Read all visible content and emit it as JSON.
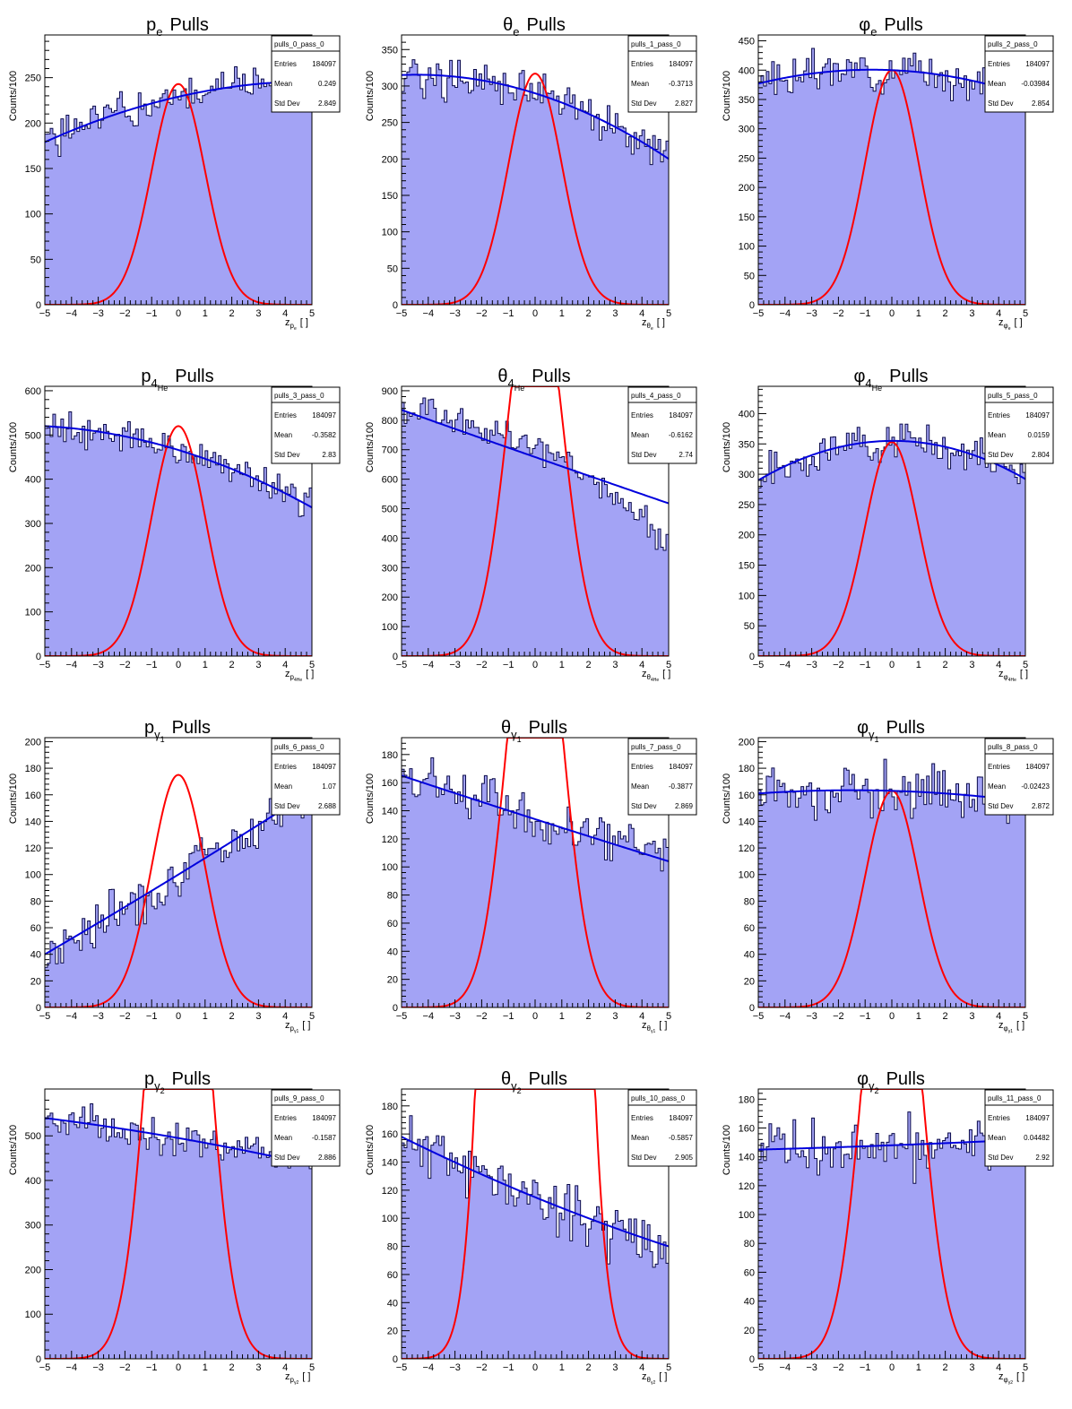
{
  "chart_data": [
    {
      "type": "bar",
      "title": {
        "sym": "p",
        "sub": "e",
        "sub2": "",
        "rest": "Pulls"
      },
      "xlabel": {
        "main": "z",
        "sub": "p",
        "subsub": "e"
      },
      "ylabel": "Counts/100",
      "xlim": [
        -5,
        5
      ],
      "ylim": [
        0,
        297
      ],
      "yticks": [
        0,
        50,
        100,
        150,
        200,
        250
      ],
      "xticks": [
        -5,
        -4,
        -3,
        -2,
        -1,
        0,
        1,
        2,
        3,
        4,
        5
      ],
      "stats": {
        "name": "pulls_0_pass_0",
        "entries": "184097",
        "mean": "0.249",
        "std": "2.849"
      },
      "hist": {
        "bins": 100,
        "trend": [
          179,
          246
        ],
        "curv": -0.9,
        "noise": 12,
        "seed": 1
      },
      "fit": {
        "color": "#0000dd",
        "y_at_xmin": 179,
        "y_at_0": 229,
        "y_at_xmax": 246
      },
      "gaussian": {
        "color": "#ff0000",
        "mean": 0,
        "sigma": 1,
        "amplitude": 243
      },
      "fill_color": "#a3a3f5"
    },
    {
      "type": "bar",
      "title": {
        "sym": "θ",
        "sub": "e",
        "sub2": "",
        "rest": "Pulls"
      },
      "xlabel": {
        "main": "z",
        "sub": "θ",
        "subsub": "e"
      },
      "ylabel": "Counts/100",
      "xlim": [
        -5,
        5
      ],
      "ylim": [
        0,
        370
      ],
      "yticks": [
        0,
        50,
        100,
        150,
        200,
        250,
        300,
        350
      ],
      "xticks": [
        -5,
        -4,
        -3,
        -2,
        -1,
        0,
        1,
        2,
        3,
        4,
        5
      ],
      "stats": {
        "name": "pulls_1_pass_0",
        "entries": "184097",
        "mean": "-0.3713",
        "std": "2.827"
      },
      "hist": {
        "bins": 100,
        "noise": 14,
        "seed": 2
      },
      "fit": {
        "color": "#0000dd",
        "y_at_xmin": 315,
        "y_at_0": 290,
        "y_at_xmax": 200
      },
      "gaussian": {
        "color": "#ff0000",
        "mean": 0,
        "sigma": 1,
        "amplitude": 317
      },
      "fill_color": "#a3a3f5"
    },
    {
      "type": "bar",
      "title": {
        "sym": "φ",
        "sub": "e",
        "sub2": "",
        "rest": "Pulls"
      },
      "xlabel": {
        "main": "z",
        "sub": "φ",
        "subsub": "e"
      },
      "ylabel": "Counts/100",
      "xlim": [
        -5,
        5
      ],
      "ylim": [
        0,
        460
      ],
      "yticks": [
        0,
        50,
        100,
        150,
        200,
        250,
        300,
        350,
        400,
        450
      ],
      "xticks": [
        -5,
        -4,
        -3,
        -2,
        -1,
        0,
        1,
        2,
        3,
        4,
        5
      ],
      "stats": {
        "name": "pulls_2_pass_0",
        "entries": "184097",
        "mean": "-0.03984",
        "std": "2.854"
      },
      "hist": {
        "bins": 100,
        "noise": 16,
        "seed": 3
      },
      "fit": {
        "color": "#0000dd",
        "y_at_xmin": 377,
        "y_at_0": 400,
        "y_at_xmax": 357
      },
      "gaussian": {
        "color": "#ff0000",
        "mean": 0,
        "sigma": 1,
        "amplitude": 400
      },
      "fill_color": "#a3a3f5"
    },
    {
      "type": "bar",
      "title": {
        "sym": "p",
        "sub": "4",
        "sub2": "He",
        "rest": "Pulls"
      },
      "xlabel": {
        "main": "z",
        "sub": "p",
        "subsub": "4He"
      },
      "ylabel": "Counts/100",
      "xlim": [
        -5,
        5
      ],
      "ylim": [
        0,
        610
      ],
      "yticks": [
        0,
        100,
        200,
        300,
        400,
        500,
        600
      ],
      "xticks": [
        -5,
        -4,
        -3,
        -2,
        -1,
        0,
        1,
        2,
        3,
        4,
        5
      ],
      "stats": {
        "name": "pulls_3_pass_0",
        "entries": "184097",
        "mean": "-0.3582",
        "std": "2.83"
      },
      "hist": {
        "bins": 100,
        "noise": 20,
        "seed": 4
      },
      "fit": {
        "color": "#0000dd",
        "y_at_xmin": 520,
        "y_at_0": 466,
        "y_at_xmax": 336
      },
      "gaussian": {
        "color": "#ff0000",
        "mean": 0,
        "sigma": 1,
        "amplitude": 520
      },
      "fill_color": "#a3a3f5"
    },
    {
      "type": "bar",
      "title": {
        "sym": "θ",
        "sub": "4",
        "sub2": "He",
        "rest": "Pulls"
      },
      "xlabel": {
        "main": "z",
        "sub": "θ",
        "subsub": "4He"
      },
      "ylabel": "Counts/100",
      "xlim": [
        -5,
        5
      ],
      "ylim": [
        0,
        915
      ],
      "yticks": [
        0,
        100,
        200,
        300,
        400,
        500,
        600,
        700,
        800,
        900
      ],
      "xticks": [
        -5,
        -4,
        -3,
        -2,
        -1,
        0,
        1,
        2,
        3,
        4,
        5
      ],
      "stats": {
        "name": "pulls_4_pass_0",
        "entries": "184097",
        "mean": "-0.6162",
        "std": "2.74"
      },
      "hist": {
        "bins": 100,
        "noise": 28,
        "seed": 5,
        "shape": [
          [
            -5,
            820
          ],
          [
            -4,
            820
          ],
          [
            -3,
            800
          ],
          [
            -2,
            780
          ],
          [
            -1,
            750
          ],
          [
            0,
            700
          ],
          [
            1,
            660
          ],
          [
            2,
            590
          ],
          [
            3,
            540
          ],
          [
            4,
            460
          ],
          [
            5,
            370
          ]
        ]
      },
      "fit": {
        "color": "#0000dd",
        "y_at_xmin": 835,
        "y_at_0": 675,
        "y_at_xmax": 518
      },
      "gaussian": {
        "color": "#ff0000",
        "mean": 0,
        "sigma": 1,
        "amplitude": 1350
      },
      "fill_color": "#a3a3f5"
    },
    {
      "type": "bar",
      "title": {
        "sym": "φ",
        "sub": "4",
        "sub2": "He",
        "rest": "Pulls"
      },
      "xlabel": {
        "main": "z",
        "sub": "φ",
        "subsub": "4He"
      },
      "ylabel": "Counts/100",
      "xlim": [
        -5,
        5
      ],
      "ylim": [
        0,
        445
      ],
      "yticks": [
        0,
        50,
        100,
        150,
        200,
        250,
        300,
        350,
        400
      ],
      "xticks": [
        -5,
        -4,
        -3,
        -2,
        -1,
        0,
        1,
        2,
        3,
        4,
        5
      ],
      "stats": {
        "name": "pulls_5_pass_0",
        "entries": "184097",
        "mean": "0.0159",
        "std": "2.804"
      },
      "hist": {
        "bins": 100,
        "noise": 16,
        "seed": 6
      },
      "fit": {
        "color": "#0000dd",
        "y_at_xmin": 290,
        "y_at_0": 355,
        "y_at_xmax": 292
      },
      "gaussian": {
        "color": "#ff0000",
        "mean": 0,
        "sigma": 1,
        "amplitude": 353
      },
      "fill_color": "#a3a3f5"
    },
    {
      "type": "bar",
      "title": {
        "sym": "p",
        "sub": "γ",
        "sub2": "1",
        "rest": "Pulls"
      },
      "xlabel": {
        "main": "z",
        "sub": "p",
        "subsub": "γ1"
      },
      "ylabel": "Counts/100",
      "xlim": [
        -5,
        5
      ],
      "ylim": [
        0,
        203
      ],
      "yticks": [
        0,
        20,
        40,
        60,
        80,
        100,
        120,
        140,
        160,
        180,
        200
      ],
      "xticks": [
        -5,
        -4,
        -3,
        -2,
        -1,
        0,
        1,
        2,
        3,
        4,
        5
      ],
      "stats": {
        "name": "pulls_6_pass_0",
        "entries": "184097",
        "mean": "1.07",
        "std": "2.688"
      },
      "hist": {
        "bins": 100,
        "noise": 9,
        "seed": 7
      },
      "fit": {
        "color": "#0000dd",
        "y_at_xmin": 40,
        "y_at_0": 100,
        "y_at_xmax": 163
      },
      "gaussian": {
        "color": "#ff0000",
        "mean": 0,
        "sigma": 1,
        "amplitude": 175
      },
      "fill_color": "#a3a3f5"
    },
    {
      "type": "bar",
      "title": {
        "sym": "θ",
        "sub": "γ",
        "sub2": "1",
        "rest": "Pulls"
      },
      "xlabel": {
        "main": "z",
        "sub": "θ",
        "subsub": "γ1"
      },
      "ylabel": "Counts/100",
      "xlim": [
        -5,
        5
      ],
      "ylim": [
        0,
        192
      ],
      "yticks": [
        0,
        20,
        40,
        60,
        80,
        100,
        120,
        140,
        160,
        180
      ],
      "xticks": [
        -5,
        -4,
        -3,
        -2,
        -1,
        0,
        1,
        2,
        3,
        4,
        5
      ],
      "stats": {
        "name": "pulls_7_pass_0",
        "entries": "184097",
        "mean": "-0.3877",
        "std": "2.869"
      },
      "hist": {
        "bins": 100,
        "noise": 9,
        "seed": 8
      },
      "fit": {
        "color": "#0000dd",
        "y_at_xmin": 165,
        "y_at_0": 134,
        "y_at_xmax": 104
      },
      "gaussian": {
        "color": "#ff0000",
        "mean": 0,
        "sigma": 1,
        "amplitude": 330
      },
      "fill_color": "#a3a3f5"
    },
    {
      "type": "bar",
      "title": {
        "sym": "φ",
        "sub": "γ",
        "sub2": "1",
        "rest": "Pulls"
      },
      "xlabel": {
        "main": "z",
        "sub": "φ",
        "subsub": "γ1"
      },
      "ylabel": "Counts/100",
      "xlim": [
        -5,
        5
      ],
      "ylim": [
        0,
        203
      ],
      "yticks": [
        0,
        20,
        40,
        60,
        80,
        100,
        120,
        140,
        160,
        180,
        200
      ],
      "xticks": [
        -5,
        -4,
        -3,
        -2,
        -1,
        0,
        1,
        2,
        3,
        4,
        5
      ],
      "stats": {
        "name": "pulls_8_pass_0",
        "entries": "184097",
        "mean": "-0.02423",
        "std": "2.872"
      },
      "hist": {
        "bins": 100,
        "noise": 11,
        "seed": 9
      },
      "fit": {
        "color": "#0000dd",
        "y_at_xmin": 161,
        "y_at_0": 163,
        "y_at_xmax": 155
      },
      "gaussian": {
        "color": "#ff0000",
        "mean": 0,
        "sigma": 1,
        "amplitude": 163
      },
      "fill_color": "#a3a3f5"
    },
    {
      "type": "bar",
      "title": {
        "sym": "p",
        "sub": "γ",
        "sub2": "2",
        "rest": "Pulls"
      },
      "xlabel": {
        "main": "z",
        "sub": "p",
        "subsub": "γ2"
      },
      "ylabel": "Counts/100",
      "xlim": [
        -5,
        5
      ],
      "ylim": [
        0,
        605
      ],
      "yticks": [
        0,
        100,
        200,
        300,
        400,
        500
      ],
      "xticks": [
        -5,
        -4,
        -3,
        -2,
        -1,
        0,
        1,
        2,
        3,
        4,
        5
      ],
      "stats": {
        "name": "pulls_9_pass_0",
        "entries": "184097",
        "mean": "-0.1587",
        "std": "2.886"
      },
      "hist": {
        "bins": 100,
        "noise": 20,
        "seed": 10
      },
      "fit": {
        "color": "#0000dd",
        "y_at_xmin": 540,
        "y_at_0": 495,
        "y_at_xmax": 435
      },
      "gaussian": {
        "color": "#ff0000",
        "mean": 0,
        "sigma": 1,
        "amplitude": 1400
      },
      "fill_color": "#a3a3f5"
    },
    {
      "type": "bar",
      "title": {
        "sym": "θ",
        "sub": "γ",
        "sub2": "2",
        "rest": "Pulls"
      },
      "xlabel": {
        "main": "z",
        "sub": "θ",
        "subsub": "γ2"
      },
      "ylabel": "Counts/100",
      "xlim": [
        -5,
        5
      ],
      "ylim": [
        0,
        192
      ],
      "yticks": [
        0,
        20,
        40,
        60,
        80,
        100,
        120,
        140,
        160,
        180
      ],
      "xticks": [
        -5,
        -4,
        -3,
        -2,
        -1,
        0,
        1,
        2,
        3,
        4,
        5
      ],
      "stats": {
        "name": "pulls_10_pass_0",
        "entries": "184097",
        "mean": "-0.5857",
        "std": "2.905"
      },
      "hist": {
        "bins": 100,
        "noise": 10,
        "seed": 11
      },
      "fit": {
        "color": "#0000dd",
        "y_at_xmin": 158,
        "y_at_0": 115,
        "y_at_xmax": 80
      },
      "gaussian": {
        "color": "#ff0000",
        "mean": 0,
        "sigma": 1,
        "amplitude": 2400
      },
      "fill_color": "#a3a3f5"
    },
    {
      "type": "bar",
      "title": {
        "sym": "φ",
        "sub": "γ",
        "sub2": "2",
        "rest": "Pulls"
      },
      "xlabel": {
        "main": "z",
        "sub": "φ",
        "subsub": "γ2"
      },
      "ylabel": "Counts/100",
      "xlim": [
        -5,
        5
      ],
      "ylim": [
        0,
        187
      ],
      "yticks": [
        0,
        20,
        40,
        60,
        80,
        100,
        120,
        140,
        160,
        180
      ],
      "xticks": [
        -5,
        -4,
        -3,
        -2,
        -1,
        0,
        1,
        2,
        3,
        4,
        5
      ],
      "stats": {
        "name": "pulls_11_pass_0",
        "entries": "184097",
        "mean": "0.04482",
        "std": "2.92"
      },
      "hist": {
        "bins": 100,
        "noise": 10,
        "seed": 12
      },
      "fit": {
        "color": "#0000dd",
        "y_at_xmin": 145,
        "y_at_0": 148,
        "y_at_xmax": 152
      },
      "gaussian": {
        "color": "#ff0000",
        "mean": 0,
        "sigma": 1,
        "amplitude": 360
      },
      "fill_color": "#a3a3f5"
    }
  ],
  "stat_labels": {
    "entries": "Entries",
    "mean": "Mean",
    "std": "Std Dev"
  }
}
